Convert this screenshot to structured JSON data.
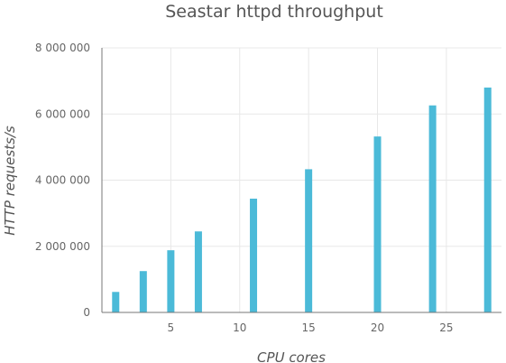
{
  "chart_data": {
    "type": "bar",
    "title": "Seastar httpd throughput",
    "xlabel": "CPU cores",
    "ylabel": "HTTP requests/s",
    "x": [
      1,
      3,
      5,
      7,
      11,
      15,
      20,
      24,
      28
    ],
    "values": [
      620000,
      1250000,
      1880000,
      2450000,
      3440000,
      4330000,
      5320000,
      6260000,
      6800000
    ],
    "xlim": [
      0,
      29
    ],
    "ylim": [
      0,
      8000000
    ],
    "x_ticks": [
      5,
      10,
      15,
      20,
      25
    ],
    "y_ticks": [
      0,
      2000000,
      4000000,
      6000000,
      8000000
    ],
    "y_tick_labels": [
      "0",
      "2 000 000",
      "4 000 000",
      "6 000 000",
      "8 000 000"
    ],
    "bar_color": "#4bbad8",
    "grid": true
  }
}
